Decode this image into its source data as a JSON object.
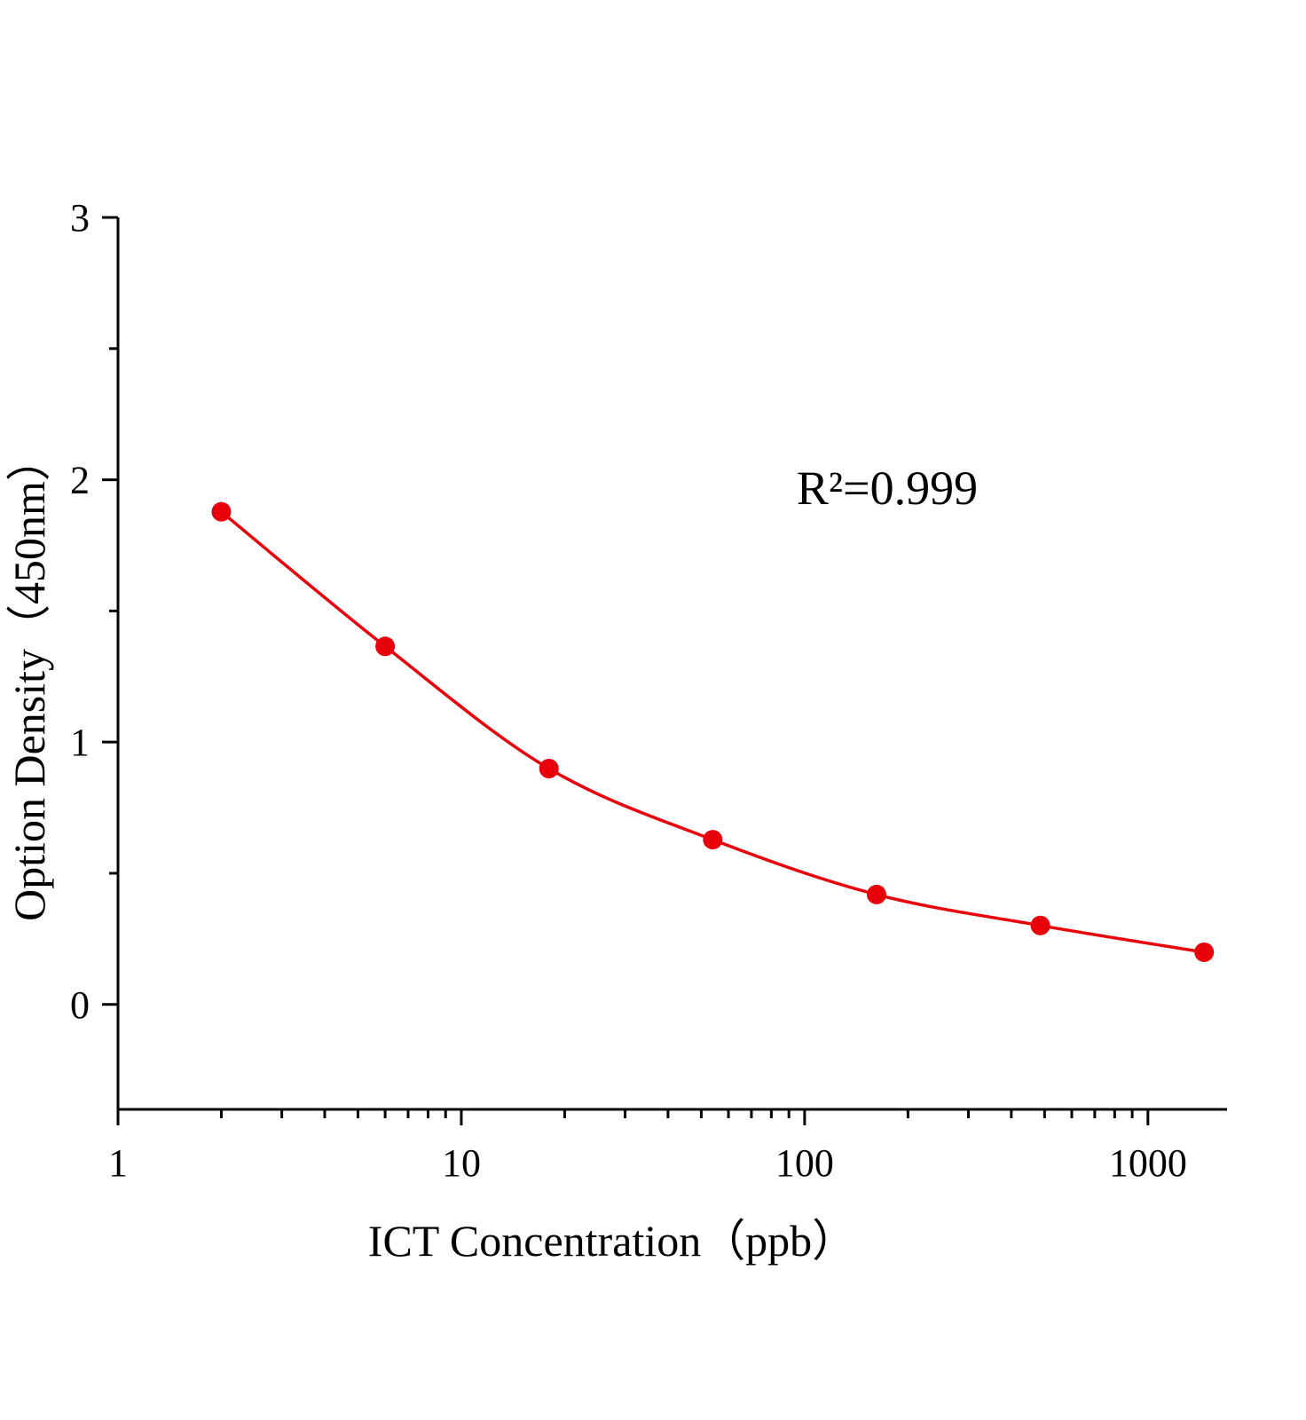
{
  "chart_data": {
    "type": "scatter",
    "x_label": "ICT  Concentration（ppb）",
    "y_label": "Option Density（450nm）",
    "annotation": "R²=0.999",
    "x": [
      2,
      6,
      18,
      54,
      162,
      486,
      1458
    ],
    "series": [
      {
        "color": "#e8000b",
        "values": [
          1.878,
          1.365,
          0.899,
          0.628,
          0.419,
          0.301,
          0.199
        ]
      }
    ],
    "xscale": "log",
    "xlim": [
      1,
      1700
    ],
    "xticks": [
      1,
      10,
      100,
      1000
    ],
    "xminorticks": [
      2,
      3,
      4,
      5,
      6,
      7,
      8,
      9,
      20,
      30,
      40,
      50,
      60,
      70,
      80,
      90,
      200,
      300,
      400,
      500,
      600,
      700,
      800,
      900
    ],
    "ylim": [
      -0.4,
      3
    ],
    "yticks": [
      0,
      1,
      2,
      3
    ],
    "yminorticks": [
      0.5,
      1.5,
      2.5
    ],
    "fit_line": true
  }
}
